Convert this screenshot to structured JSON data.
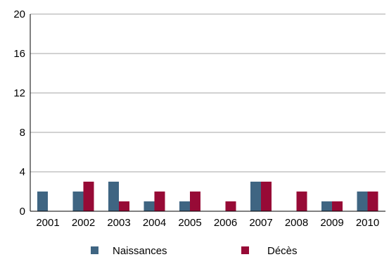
{
  "chart_data": {
    "type": "bar",
    "categories": [
      "2001",
      "2002",
      "2003",
      "2004",
      "2005",
      "2006",
      "2007",
      "2008",
      "2009",
      "2010"
    ],
    "series": [
      {
        "name": "Naissances",
        "color": "#3f6582",
        "values": [
          2,
          2,
          3,
          1,
          1,
          0,
          3,
          0,
          1,
          2
        ]
      },
      {
        "name": "Décès",
        "color": "#970a36",
        "values": [
          0,
          3,
          1,
          2,
          2,
          1,
          3,
          2,
          1,
          2
        ]
      }
    ],
    "yticks": [
      "0",
      "4",
      "8",
      "12",
      "16",
      "20"
    ],
    "ylim": [
      0,
      20
    ],
    "grid": true,
    "legend": "bottom"
  }
}
